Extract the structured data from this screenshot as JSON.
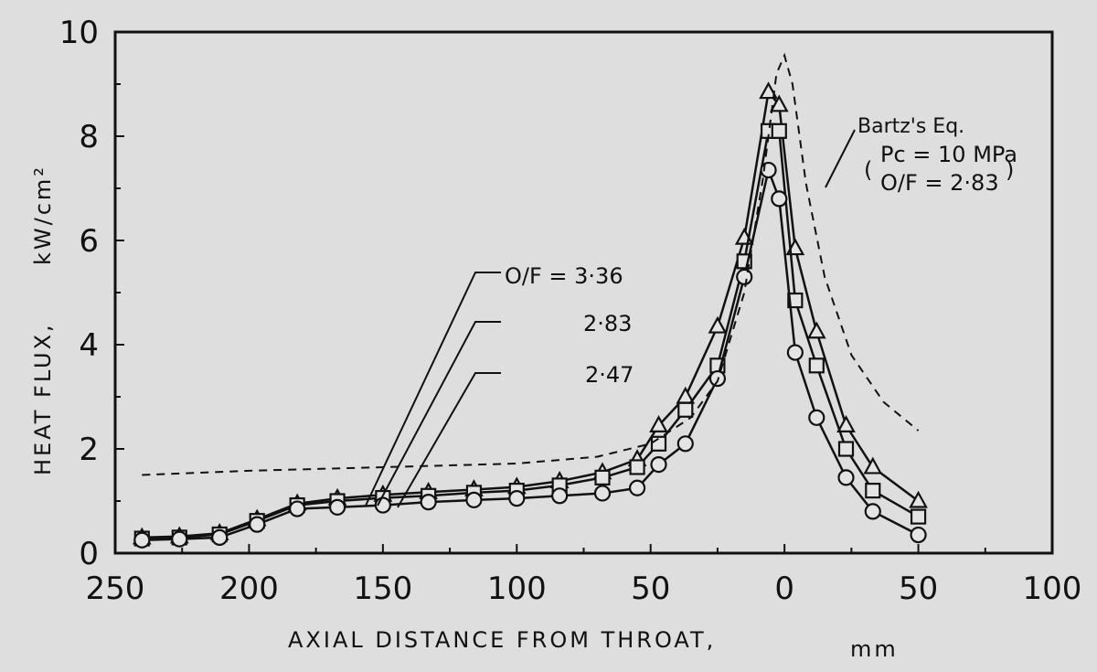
{
  "chart_data": {
    "type": "line",
    "xlabel": "AXIAL DISTANCE FROM THROAT,",
    "xunit": "mm",
    "ylabel": "HEAT FLUX,",
    "yunit": "kW/cm²",
    "xlim": [
      250,
      -100
    ],
    "ylim": [
      0,
      10
    ],
    "x_ticks": [
      250,
      200,
      150,
      100,
      50,
      0,
      -50,
      -100
    ],
    "x_tick_labels": [
      "250",
      "200",
      "150",
      "100",
      "50",
      "0",
      "50",
      "100"
    ],
    "y_ticks": [
      0,
      2,
      4,
      6,
      8,
      10
    ],
    "y_tick_labels": [
      "0",
      "2",
      "4",
      "6",
      "8",
      "10"
    ],
    "grid": false,
    "series": [
      {
        "name": "3.36",
        "marker": "triangle",
        "x": [
          240,
          226,
          211,
          197,
          182,
          167,
          150,
          133,
          116,
          100,
          84,
          68,
          55,
          47,
          37,
          25,
          15,
          6,
          2,
          -4,
          -12,
          -23,
          -33,
          -50
        ],
        "y": [
          0.3,
          0.32,
          0.38,
          0.65,
          0.95,
          1.05,
          1.12,
          1.17,
          1.22,
          1.27,
          1.38,
          1.55,
          1.8,
          2.45,
          3.0,
          4.35,
          6.05,
          8.85,
          8.6,
          5.85,
          4.25,
          2.45,
          1.65,
          1.0
        ]
      },
      {
        "name": "2.83",
        "marker": "square",
        "x": [
          240,
          226,
          211,
          197,
          182,
          167,
          150,
          133,
          116,
          100,
          84,
          68,
          55,
          47,
          37,
          25,
          15,
          6,
          2,
          -4,
          -12,
          -23,
          -33,
          -50
        ],
        "y": [
          0.28,
          0.3,
          0.36,
          0.62,
          0.92,
          1.0,
          1.06,
          1.1,
          1.16,
          1.2,
          1.3,
          1.45,
          1.65,
          2.1,
          2.75,
          3.6,
          5.6,
          8.1,
          8.1,
          4.85,
          3.6,
          2.0,
          1.2,
          0.7
        ]
      },
      {
        "name": "2.47",
        "marker": "circle",
        "x": [
          240,
          226,
          211,
          197,
          182,
          167,
          150,
          133,
          116,
          100,
          84,
          68,
          55,
          47,
          37,
          25,
          15,
          6,
          2,
          -4,
          -12,
          -23,
          -33,
          -50
        ],
        "y": [
          0.25,
          0.27,
          0.3,
          0.55,
          0.85,
          0.88,
          0.92,
          0.98,
          1.02,
          1.05,
          1.1,
          1.15,
          1.25,
          1.7,
          2.1,
          3.35,
          5.3,
          7.35,
          6.8,
          3.85,
          2.6,
          1.45,
          0.8,
          0.35
        ]
      },
      {
        "name": "Bartz's Eq.",
        "style": "dashed",
        "x": [
          240,
          200,
          150,
          100,
          70,
          50,
          35,
          25,
          15,
          8,
          3,
          0,
          -3,
          -8,
          -15,
          -25,
          -37,
          -50
        ],
        "y": [
          1.5,
          1.58,
          1.65,
          1.72,
          1.85,
          2.1,
          2.6,
          3.3,
          5.0,
          7.2,
          9.2,
          9.55,
          9.0,
          7.1,
          5.3,
          3.8,
          2.9,
          2.35
        ]
      }
    ],
    "annotations": {
      "of_label": "O/F = 3·36",
      "of_2": "2·83",
      "of_3": "2·47",
      "bartz_label": "Bartz's Eq.",
      "pc_label": "Pc = 10 MPa",
      "bartz_of_label": "O/F = 2·83",
      "paren_open": "(",
      "paren_close": ")"
    }
  }
}
